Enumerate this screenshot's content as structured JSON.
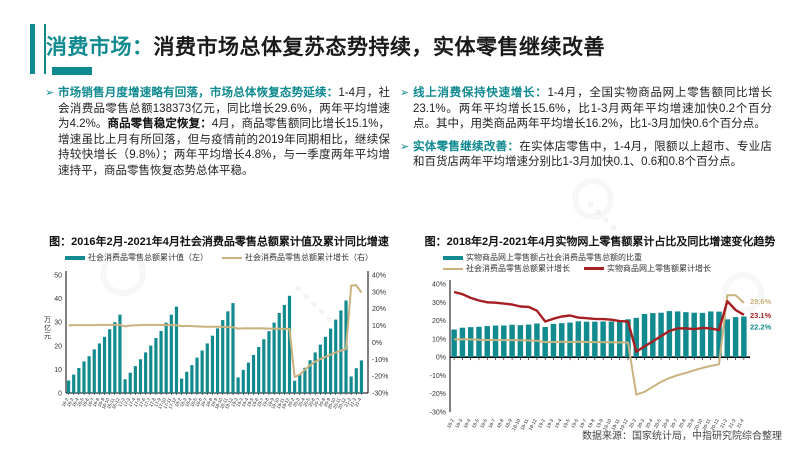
{
  "page": {
    "title_accent": "消费市场：",
    "title_rest": "消费市场总体复苏态势持续，实体零售继续改善",
    "source": "数据来源：国家统计局，中指研究院综合整理"
  },
  "colors": {
    "teal": "#128b90",
    "gold": "#c9b27d",
    "red": "#a51e22"
  },
  "bullets": {
    "left": {
      "lead": "市场销售月度增速略有回落，市场总体恢复态势延续：",
      "text1": "1-4月，社会消费品零售总额138373亿元，同比增长29.6%，两年平均增速为4.2%。",
      "bold2": "商品零售稳定恢复：",
      "text2": "4月，商品零售额同比增长15.1%，增速虽比上月有所回落，但与疫情前的2019年同期相比，继续保持较快增长（9.8%）；两年平均增长4.8%，与一季度两年平均增速持平，商品零售恢复态势总体平稳。"
    },
    "right1": {
      "lead": "线上消费保持快速增长：",
      "text": "1-4月，全国实物商品网上零售额同比增长23.1%。两年平均增长15.6%，比1-3月两年平均增速加快0.2个百分点。其中，用类商品两年平均增长16.2%，比1-3月加快0.6个百分点。"
    },
    "right2": {
      "lead": "实体零售继续改善：",
      "text": "在实体店零售中，1-4月，限额以上超市、专业店和百货店两年平均增速分别比1-3月加快0.1、0.6和0.8个百分点。"
    }
  },
  "chart_data": [
    {
      "type": "bar",
      "subtype": "combo-bar-line-dual-axis",
      "title": "图：2016年2月-2021年4月社会消费品零售总额累计值及累计同比增速",
      "ylabel_left": "万亿元",
      "ylim_left": [
        0,
        50
      ],
      "yticks_left": [
        "0",
        "10",
        "20",
        "30",
        "40",
        "50"
      ],
      "ylim_right": [
        -30,
        40
      ],
      "yticks_right": [
        "40%",
        "30%",
        "20%",
        "10%",
        "0%",
        "-10%",
        "-20%",
        "-30%"
      ],
      "grid": false,
      "legend_position": "top",
      "categories": [
        "16-2",
        "16-3",
        "16-4",
        "16-5",
        "16-6",
        "16-7",
        "16-8",
        "16-9",
        "16-10",
        "16-11",
        "16-12",
        "17-2",
        "17-3",
        "17-4",
        "17-5",
        "17-6",
        "17-7",
        "17-8",
        "17-9",
        "17-10",
        "17-11",
        "17-12",
        "18-2",
        "18-3",
        "18-4",
        "18-5",
        "18-6",
        "18-7",
        "18-8",
        "18-9",
        "18-10",
        "18-11",
        "18-12",
        "19-2",
        "19-3",
        "19-4",
        "19-5",
        "19-6",
        "19-7",
        "19-8",
        "19-9",
        "19-10",
        "19-11",
        "19-12",
        "20-2",
        "20-3",
        "20-4",
        "20-5",
        "20-6",
        "20-7",
        "20-8",
        "20-9",
        "20-10",
        "20-11",
        "20-12",
        "21-2",
        "21-3",
        "21-4"
      ],
      "series": [
        {
          "name": "社会消费品零售总额累计值（左）",
          "kind": "bar",
          "axis": "left",
          "color": "#128b90",
          "values": [
            5.3,
            7.8,
            10.6,
            13.4,
            15.6,
            18.5,
            21.0,
            23.8,
            27.0,
            30.0,
            33.2,
            5.8,
            8.6,
            11.4,
            14.3,
            17.2,
            20.1,
            23.3,
            26.3,
            29.8,
            33.2,
            36.6,
            6.1,
            9.0,
            11.8,
            15.0,
            18.0,
            21.0,
            24.3,
            27.4,
            30.9,
            34.6,
            38.1,
            6.6,
            9.8,
            12.9,
            16.1,
            19.5,
            22.8,
            26.2,
            29.8,
            33.9,
            37.3,
            41.2,
            5.2,
            7.9,
            10.7,
            13.9,
            17.2,
            20.5,
            23.8,
            27.3,
            31.1,
            35.0,
            39.2,
            7.0,
            10.5,
            13.8
          ]
        },
        {
          "name": "社会消费品零售总额累计增长（右）",
          "kind": "line",
          "axis": "right",
          "color": "#c9b27d",
          "values": [
            10.2,
            10.3,
            10.3,
            10.3,
            10.3,
            10.3,
            10.4,
            10.4,
            10.4,
            10.4,
            10.4,
            9.5,
            10.0,
            10.2,
            10.3,
            10.4,
            10.4,
            10.4,
            10.4,
            10.3,
            10.3,
            10.2,
            9.7,
            9.8,
            9.7,
            9.5,
            9.4,
            9.3,
            9.3,
            9.3,
            9.2,
            9.1,
            9.0,
            8.2,
            8.3,
            8.4,
            8.3,
            8.4,
            8.3,
            8.2,
            8.2,
            8.1,
            8.0,
            8.0,
            -20.5,
            -19.0,
            -16.2,
            -13.5,
            -11.4,
            -9.9,
            -8.6,
            -7.2,
            -5.9,
            -4.8,
            -3.9,
            33.8,
            33.9,
            29.6
          ]
        }
      ]
    },
    {
      "type": "bar",
      "subtype": "combo-bar-line",
      "title": "图：2018年2月-2021年4月实物网上零售额累计占比及同比增速变化趋势",
      "ylim": [
        -30,
        40
      ],
      "yticks": [
        "40%",
        "30%",
        "20%",
        "10%",
        "0%",
        "-10%",
        "-20%",
        "-30%"
      ],
      "grid": false,
      "legend_position": "top",
      "categories": [
        "18-2",
        "18-3",
        "18-4",
        "18-5",
        "18-6",
        "18-7",
        "18-8",
        "18-9",
        "18-10",
        "18-11",
        "18-12",
        "19-2",
        "19-3",
        "19-4",
        "19-5",
        "19-6",
        "19-7",
        "19-8",
        "19-9",
        "19-10",
        "19-11",
        "19-12",
        "20-2",
        "20-3",
        "20-4",
        "20-5",
        "20-6",
        "20-7",
        "20-8",
        "20-9",
        "20-10",
        "20-11",
        "20-12",
        "21-2",
        "21-3",
        "21-4"
      ],
      "series": [
        {
          "name": "实物商品网上零售额占社会消费品零售总额的比重",
          "kind": "bar",
          "color": "#128b90",
          "end_label": "22.2%",
          "values": [
            15.1,
            16.1,
            16.4,
            16.6,
            17.0,
            17.3,
            17.3,
            17.7,
            17.5,
            17.8,
            18.4,
            16.5,
            18.2,
            18.6,
            18.9,
            19.6,
            19.4,
            19.4,
            19.5,
            19.5,
            20.0,
            20.7,
            21.5,
            23.6,
            24.1,
            24.3,
            25.2,
            25.0,
            24.6,
            24.3,
            24.2,
            25.0,
            24.9,
            20.7,
            21.9,
            22.2
          ]
        },
        {
          "name": "社会消费品零售总额累计增长",
          "kind": "line",
          "color": "#c9b27d",
          "end_label": "29.6%",
          "values": [
            9.7,
            9.8,
            9.7,
            9.5,
            9.4,
            9.3,
            9.3,
            9.3,
            9.2,
            9.1,
            9.0,
            8.2,
            8.3,
            8.4,
            8.3,
            8.4,
            8.3,
            8.2,
            8.2,
            8.1,
            8.0,
            8.0,
            -20.5,
            -19.0,
            -16.2,
            -13.5,
            -11.4,
            -9.9,
            -8.6,
            -7.2,
            -5.9,
            -4.8,
            -3.9,
            33.8,
            33.9,
            29.6
          ]
        },
        {
          "name": "实物商品网上零售额累计增长",
          "kind": "line",
          "color": "#a51e22",
          "end_label": "23.1%",
          "values": [
            35.6,
            34.4,
            32.4,
            31.0,
            30.0,
            29.8,
            29.3,
            28.8,
            27.7,
            27.5,
            25.4,
            19.5,
            21.0,
            22.2,
            22.8,
            21.6,
            21.3,
            20.9,
            20.8,
            20.5,
            19.7,
            19.5,
            3.0,
            5.9,
            8.6,
            11.5,
            14.3,
            15.7,
            15.8,
            15.3,
            16.0,
            15.7,
            14.8,
            30.6,
            25.8,
            23.1
          ]
        }
      ]
    }
  ]
}
